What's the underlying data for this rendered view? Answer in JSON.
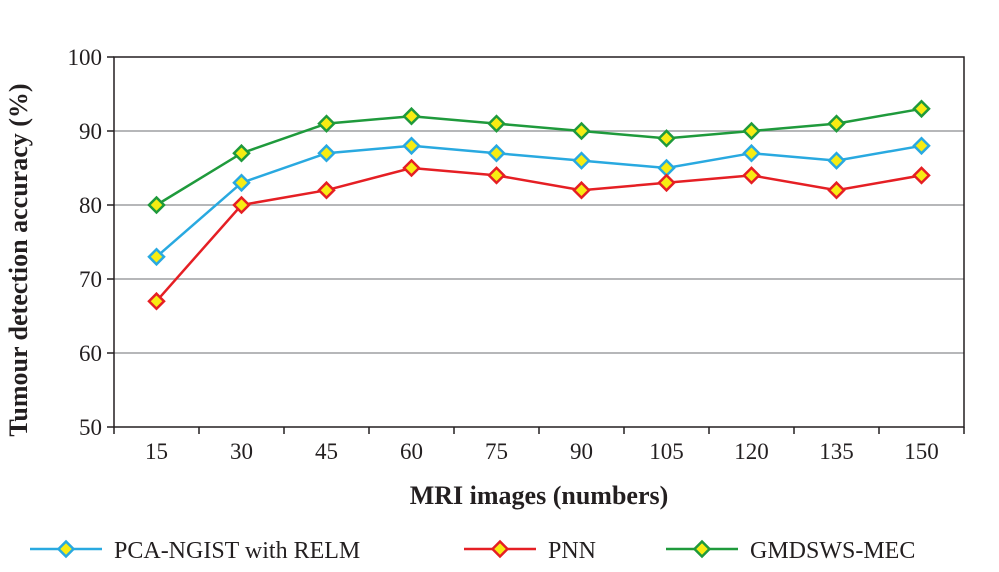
{
  "chart_data": {
    "type": "line",
    "title": "",
    "xlabel": "MRI images (numbers)",
    "ylabel": "Tumour detection accuracy (%)",
    "x": [
      15,
      30,
      45,
      60,
      75,
      90,
      105,
      120,
      135,
      150
    ],
    "x_tick_labels": [
      "15",
      "30",
      "45",
      "60",
      "75",
      "90",
      "105",
      "120",
      "135",
      "150"
    ],
    "ylim": [
      50,
      100
    ],
    "y_ticks": [
      50,
      60,
      70,
      80,
      90,
      100
    ],
    "y_tick_labels": [
      "50",
      "60",
      "70",
      "80",
      "90",
      "100"
    ],
    "grid": true,
    "legend_position": "bottom",
    "marker_fill": "#f7ec13",
    "series": [
      {
        "name": "PCA-NGIST with RELM",
        "color": "#29a9e0",
        "values": [
          73,
          83,
          87,
          88,
          87,
          86,
          85,
          87,
          86,
          88
        ]
      },
      {
        "name": "PNN",
        "color": "#e51f24",
        "values": [
          67,
          80,
          82,
          85,
          84,
          82,
          83,
          84,
          82,
          84
        ]
      },
      {
        "name": "GMDSWS-MEC",
        "color": "#1f9a3c",
        "values": [
          80,
          87,
          91,
          92,
          91,
          90,
          89,
          90,
          91,
          93
        ]
      }
    ]
  }
}
